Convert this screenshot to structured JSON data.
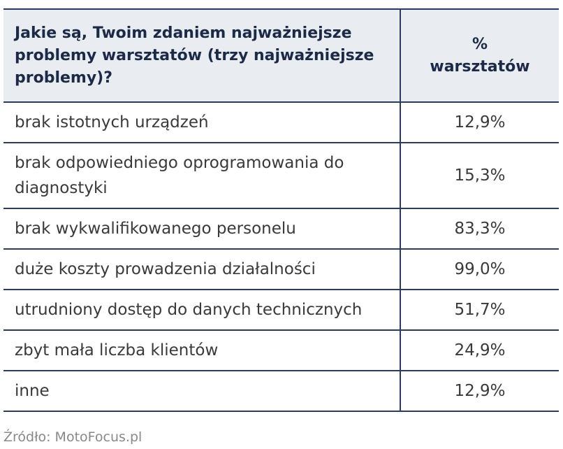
{
  "table": {
    "header": [
      "Jakie są, Twoim zdaniem najważniejsze problemy warsztatów (trzy najważniejsze problemy)?",
      "%\nwarsztatów"
    ],
    "rows": [
      [
        "brak istotnych urządzeń",
        "12,9%"
      ],
      [
        "brak odpowiedniego oprogramowania do diagnostyki",
        "15,3%"
      ],
      [
        "brak wykwalifikowanego personelu",
        "83,3%"
      ],
      [
        "duże koszty prowadzenia działalności",
        "99,0%"
      ],
      [
        "utrudniony dostęp do danych technicznych",
        "51,7%"
      ],
      [
        "zbyt mała liczba klientów",
        "24,9%"
      ],
      [
        "inne",
        "12,9%"
      ]
    ]
  },
  "source": "Źródło: MotoFocus.pl"
}
